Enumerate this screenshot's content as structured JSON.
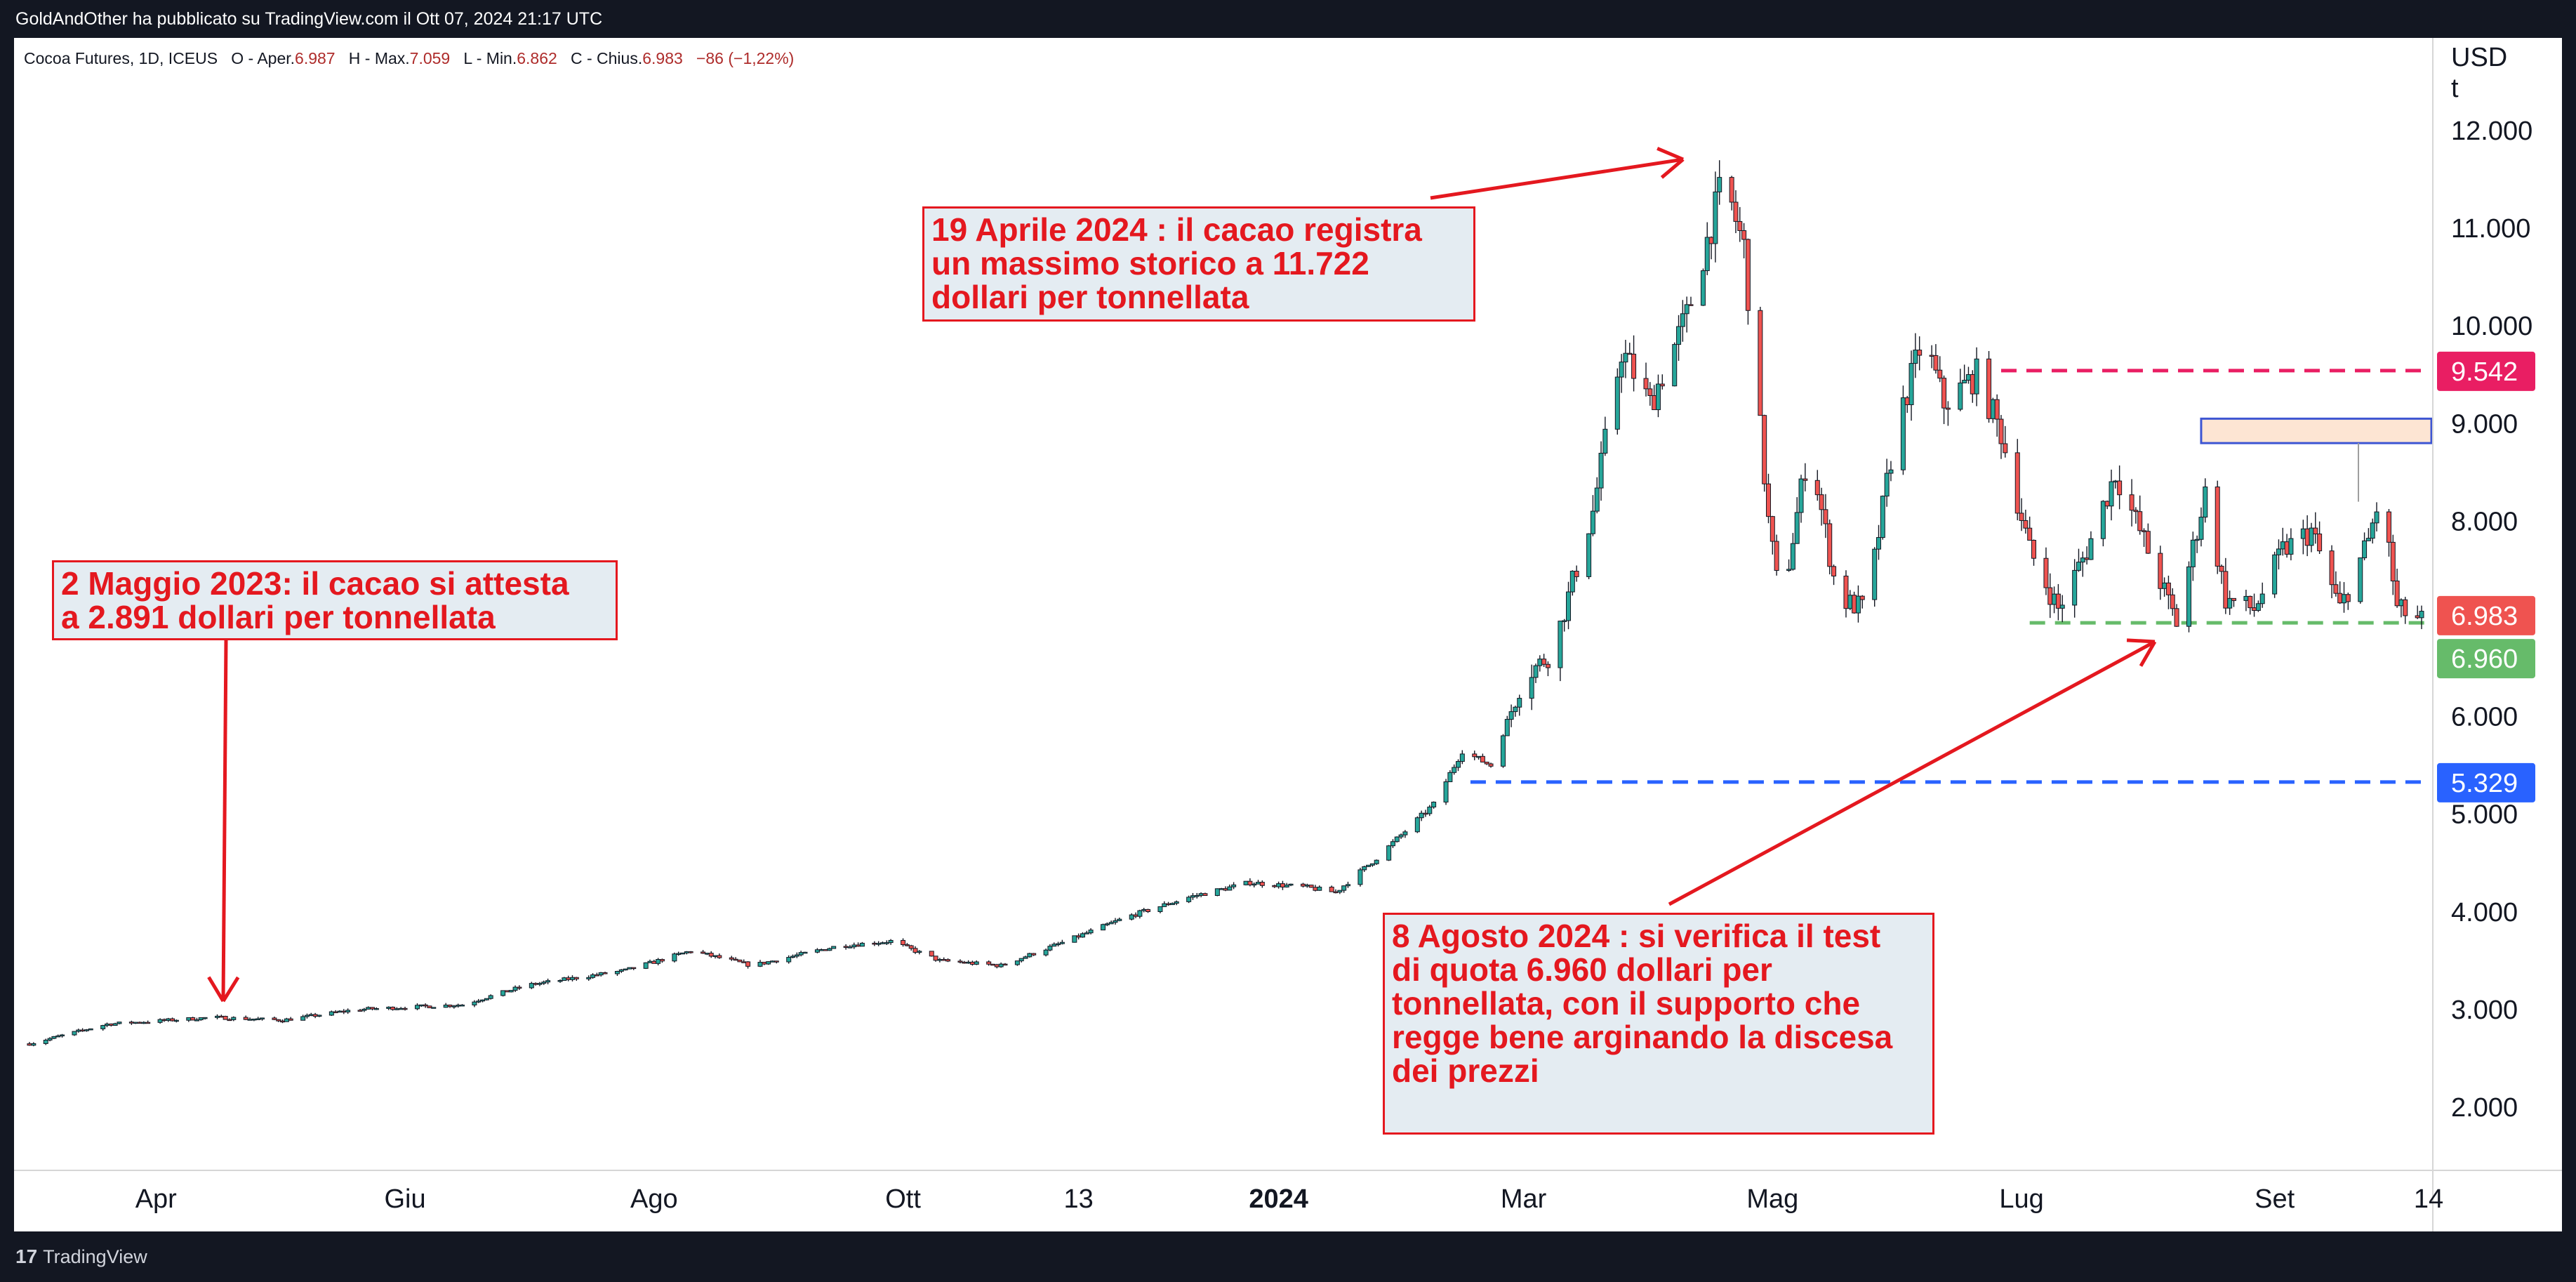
{
  "header": {
    "published": "GoldAndOther ha pubblicato su TradingView.com il Ott 07, 2024 21:17 UTC"
  },
  "footer": {
    "brand": "TradingView",
    "brand_mark": "17"
  },
  "chart_data": {
    "type": "candlestick",
    "symbol_info": {
      "name": "Cocoa Futures, 1D, ICEUS",
      "open_label": "O - Aper.",
      "open": "6.987",
      "high_label": "H - Max.",
      "high": "7.059",
      "low_label": "L - Min.",
      "low": "6.862",
      "close_label": "C - Chius.",
      "close": "6.983",
      "change": "−86 (−1,22%)"
    },
    "currency": "USD",
    "unit": "t",
    "ylim": [
      1300,
      12400
    ],
    "y_ticks": [
      {
        "value": 2000,
        "label": "2.000"
      },
      {
        "value": 3000,
        "label": "3.000"
      },
      {
        "value": 4000,
        "label": "4.000"
      },
      {
        "value": 5000,
        "label": "5.000"
      },
      {
        "value": 6000,
        "label": "6.000"
      },
      {
        "value": 7000,
        "label": "7.000"
      },
      {
        "value": 8000,
        "label": "8.000"
      },
      {
        "value": 9000,
        "label": "9.000"
      },
      {
        "value": 10000,
        "label": "10.000"
      },
      {
        "value": 11000,
        "label": "11.000"
      },
      {
        "value": 12000,
        "label": "12.000"
      }
    ],
    "x_ticks": [
      {
        "date": "2023-04-01",
        "label": "Apr",
        "bold": false
      },
      {
        "date": "2023-06-01",
        "label": "Giu",
        "bold": false
      },
      {
        "date": "2023-08-01",
        "label": "Ago",
        "bold": false
      },
      {
        "date": "2023-10-01",
        "label": "Ott",
        "bold": false
      },
      {
        "date": "2023-11-13",
        "label": "13",
        "bold": false
      },
      {
        "date": "2024-01-01",
        "label": "2024",
        "bold": true
      },
      {
        "date": "2024-03-01",
        "label": "Mar",
        "bold": false
      },
      {
        "date": "2024-05-01",
        "label": "Mag",
        "bold": false
      },
      {
        "date": "2024-07-01",
        "label": "Lug",
        "bold": false
      },
      {
        "date": "2024-09-01",
        "label": "Set",
        "bold": false
      },
      {
        "date": "2024-10-14",
        "label": "14",
        "bold": false
      }
    ],
    "x_range": [
      "2023-03-01",
      "2024-10-14"
    ],
    "price_path": [
      [
        "2023-03-01",
        2650
      ],
      [
        "2023-03-20",
        2850
      ],
      [
        "2023-04-15",
        2920
      ],
      [
        "2023-05-02",
        2891
      ],
      [
        "2023-05-20",
        3000
      ],
      [
        "2023-06-15",
        3050
      ],
      [
        "2023-07-01",
        3250
      ],
      [
        "2023-07-25",
        3400
      ],
      [
        "2023-08-10",
        3600
      ],
      [
        "2023-08-25",
        3450
      ],
      [
        "2023-09-15",
        3650
      ],
      [
        "2023-09-28",
        3700
      ],
      [
        "2023-10-10",
        3500
      ],
      [
        "2023-10-25",
        3450
      ],
      [
        "2023-11-10",
        3700
      ],
      [
        "2023-11-25",
        3950
      ],
      [
        "2023-12-10",
        4150
      ],
      [
        "2023-12-25",
        4300
      ],
      [
        "2024-01-08",
        4250
      ],
      [
        "2024-01-15",
        4200
      ],
      [
        "2024-01-25",
        4550
      ],
      [
        "2024-02-08",
        5100
      ],
      [
        "2024-02-15",
        5650
      ],
      [
        "2024-02-22",
        5500
      ],
      [
        "2024-03-01",
        6400
      ],
      [
        "2024-03-08",
        6650
      ],
      [
        "2024-03-18",
        8100
      ],
      [
        "2024-03-25",
        9750
      ],
      [
        "2024-04-01",
        9200
      ],
      [
        "2024-04-10",
        10100
      ],
      [
        "2024-04-19",
        11500
      ],
      [
        "2024-04-24",
        10800
      ],
      [
        "2024-04-30",
        8000
      ],
      [
        "2024-05-03",
        7100
      ],
      [
        "2024-05-10",
        8800
      ],
      [
        "2024-05-17",
        7200
      ],
      [
        "2024-05-24",
        7100
      ],
      [
        "2024-05-31",
        8900
      ],
      [
        "2024-06-07",
        9900
      ],
      [
        "2024-06-12",
        9200
      ],
      [
        "2024-06-20",
        9500
      ],
      [
        "2024-06-26",
        8900
      ],
      [
        "2024-07-03",
        7700
      ],
      [
        "2024-07-10",
        7100
      ],
      [
        "2024-07-17",
        7700
      ],
      [
        "2024-07-24",
        8500
      ],
      [
        "2024-07-31",
        7800
      ],
      [
        "2024-08-08",
        6960
      ],
      [
        "2024-08-15",
        8300
      ],
      [
        "2024-08-20",
        7200
      ],
      [
        "2024-08-27",
        7100
      ],
      [
        "2024-09-03",
        7700
      ],
      [
        "2024-09-10",
        7900
      ],
      [
        "2024-09-17",
        7100
      ],
      [
        "2024-09-24",
        7800
      ],
      [
        "2024-09-27",
        8300
      ],
      [
        "2024-10-01",
        7100
      ],
      [
        "2024-10-07",
        6983
      ]
    ],
    "levels": [
      {
        "value": 9542,
        "label": "9.542",
        "color": "#e91e63",
        "style": "dashed",
        "from": "2024-06-26"
      },
      {
        "value": 6983,
        "label": "6.983",
        "color": "#ef5350",
        "style": "none",
        "from": "2024-10-07"
      },
      {
        "value": 6960,
        "label": "6.960",
        "color": "#66bb6a",
        "style": "dashed",
        "from": "2024-07-03"
      },
      {
        "value": 5329,
        "label": "5.329",
        "color": "#2962ff",
        "style": "dashed",
        "from": "2024-02-17"
      }
    ],
    "zone": {
      "from_value": 8800,
      "to_value": 9050,
      "from": "2024-08-14",
      "fill": "#fde5d3",
      "border": "#3d55d3"
    },
    "colors": {
      "up": "#26a69a",
      "down": "#ef5350",
      "annotation": "#e4181f"
    },
    "annotations": [
      {
        "text": "2 Maggio 2023: il cacao si attesta\na  2.891 dollari per tonnellata"
      },
      {
        "text": "19 Aprile 2024 : il cacao registra\nun massimo storico a 11.722\ndollari per tonnellata"
      },
      {
        "text": "8 Agosto 2024 : si verifica il test\ndi quota 6.960 dollari per\ntonnellata, con il supporto che\nregge bene arginando la discesa\ndei prezzi"
      }
    ]
  }
}
